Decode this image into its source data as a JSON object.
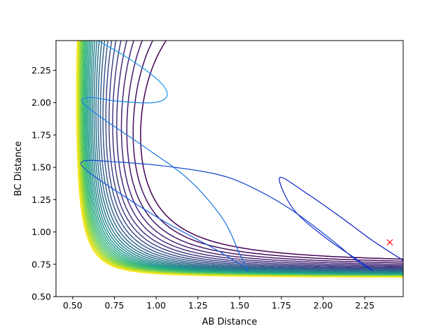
{
  "chart_data": {
    "type": "contour",
    "xlabel": "AB Distance",
    "ylabel": "BC Distance",
    "xlim": [
      0.4,
      2.48
    ],
    "ylim": [
      0.5,
      2.48
    ],
    "xticks": [
      0.5,
      0.75,
      1.0,
      1.25,
      1.5,
      1.75,
      2.0,
      2.25
    ],
    "xtick_labels": [
      "0.50",
      "0.75",
      "1.00",
      "1.25",
      "1.50",
      "1.75",
      "2.00",
      "2.25"
    ],
    "yticks": [
      0.5,
      0.75,
      1.0,
      1.25,
      1.5,
      1.75,
      2.0,
      2.25
    ],
    "ytick_labels": [
      "0.50",
      "0.75",
      "1.00",
      "1.25",
      "1.50",
      "1.75",
      "2.00",
      "2.25"
    ],
    "grid": false,
    "colormap": "viridis",
    "contour_levels": 30,
    "surface": {
      "asymptote_x": 0.4,
      "asymptote_y": 0.6,
      "valley_y": 0.9,
      "level_start": 0.018,
      "level_step": 0.026
    },
    "trajectory": {
      "color_start": "#1c9ff0",
      "color_end": "#0a14c0",
      "points": [
        [
          0.65,
          2.48
        ],
        [
          0.8,
          2.37
        ],
        [
          0.95,
          2.24
        ],
        [
          1.05,
          2.12
        ],
        [
          1.06,
          2.04
        ],
        [
          0.98,
          2.0
        ],
        [
          0.78,
          2.01
        ],
        [
          0.6,
          2.04
        ],
        [
          0.56,
          2.0
        ],
        [
          0.7,
          1.86
        ],
        [
          0.95,
          1.64
        ],
        [
          1.2,
          1.4
        ],
        [
          1.4,
          1.1
        ],
        [
          1.5,
          0.83
        ],
        [
          1.55,
          0.7
        ],
        [
          1.5,
          0.75
        ],
        [
          1.35,
          0.87
        ],
        [
          1.05,
          1.08
        ],
        [
          0.78,
          1.3
        ],
        [
          0.58,
          1.48
        ],
        [
          0.57,
          1.55
        ],
        [
          0.78,
          1.54
        ],
        [
          1.05,
          1.51
        ],
        [
          1.35,
          1.45
        ],
        [
          1.55,
          1.36
        ],
        [
          1.8,
          1.18
        ],
        [
          2.05,
          0.94
        ],
        [
          2.2,
          0.78
        ],
        [
          2.3,
          0.7
        ],
        [
          2.2,
          0.79
        ],
        [
          2.0,
          0.97
        ],
        [
          1.82,
          1.18
        ],
        [
          1.74,
          1.42
        ],
        [
          1.9,
          1.3
        ],
        [
          2.1,
          1.12
        ],
        [
          2.3,
          0.93
        ],
        [
          2.48,
          0.78
        ]
      ]
    },
    "marker": {
      "x": 2.4,
      "y": 0.92,
      "symbol": "x",
      "color": "#ff0000"
    }
  }
}
